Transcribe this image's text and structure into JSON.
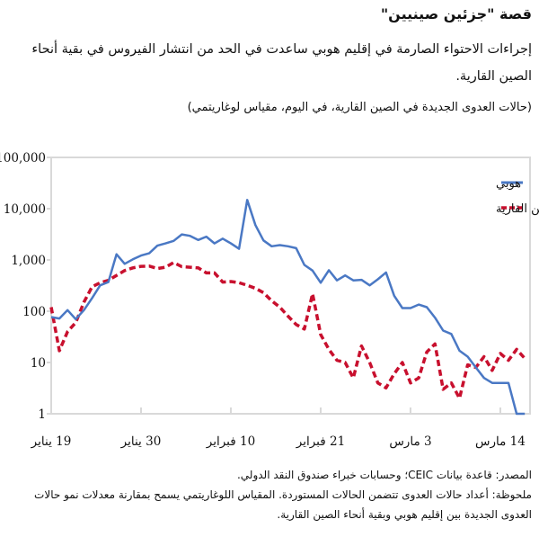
{
  "header": {
    "title": "قصة \"جزئين صينيين\"",
    "subtitle": "إجراءات الاحتواء الصارمة في إقليم هوبي ساعدت في الحد من انتشار الفيروس في بقية أنحاء الصين القارية.",
    "units_note": "(حالات العدوى الجديدة في الصين القارية، في اليوم، مقياس لوغاريتمي)"
  },
  "footer": {
    "source": "المصدر: قاعدة بيانات CEIC؛ وحسابات خبراء صندوق النقد الدولي.",
    "note": "ملحوظة: أعداد حالات العدوى تتضمن الحالات المستوردة. المقياس اللوغاريتمي يسمح بمقارنة معدلات نمو حالات العدوى الجديدة بين إقليم هوبي وبقية أنحاء الصين القارية."
  },
  "chart_data": {
    "type": "line",
    "y_scale": "log",
    "ylim": [
      1,
      100000
    ],
    "y_ticks": [
      {
        "value": 1,
        "label": "1"
      },
      {
        "value": 10,
        "label": "10"
      },
      {
        "value": 100,
        "label": "100"
      },
      {
        "value": 1000,
        "label": "1,000"
      },
      {
        "value": 10000,
        "label": "10,000"
      },
      {
        "value": 100000,
        "label": "100,000"
      }
    ],
    "x_start": "2020-01-19",
    "x_end": "2020-03-17",
    "x_ticks": [
      {
        "date": "2020-01-19",
        "label": "19 يناير"
      },
      {
        "date": "2020-01-30",
        "label": "30 يناير"
      },
      {
        "date": "2020-02-10",
        "label": "10 فبراير"
      },
      {
        "date": "2020-02-21",
        "label": "21 فبراير"
      },
      {
        "date": "2020-03-03",
        "label": "3 مارس"
      },
      {
        "date": "2020-03-14",
        "label": "14 مارس"
      }
    ],
    "grid": false,
    "legend_position": "top-right",
    "series": [
      {
        "name": "هوبي",
        "color": "#4a78c4",
        "style": "solid",
        "values": [
          77,
          72,
          105,
          70,
          105,
          180,
          320,
          370,
          1290,
          840,
          1030,
          1220,
          1350,
          1900,
          2100,
          2350,
          3150,
          2950,
          2450,
          2850,
          2100,
          2600,
          2100,
          1650,
          14800,
          4800,
          2400,
          1850,
          1950,
          1850,
          1700,
          800,
          620,
          360,
          630,
          400,
          500,
          400,
          410,
          320,
          420,
          570,
          200,
          115,
          115,
          135,
          120,
          75,
          42,
          36,
          17,
          13,
          8,
          5,
          4,
          4,
          4,
          1,
          1
        ]
      },
      {
        "name": "بقية أنحاء الصين القارية",
        "color": "#c8102e",
        "style": "dashed",
        "values": [
          120,
          17,
          40,
          60,
          150,
          300,
          360,
          400,
          500,
          620,
          700,
          750,
          760,
          680,
          720,
          890,
          740,
          720,
          700,
          560,
          560,
          370,
          380,
          360,
          320,
          280,
          230,
          160,
          120,
          80,
          55,
          45,
          220,
          35,
          18,
          11,
          10,
          5,
          21,
          10,
          4,
          3.2,
          6,
          10,
          4,
          5,
          16,
          23,
          3,
          4,
          2,
          9,
          8,
          13,
          7,
          15,
          11,
          18,
          12
        ]
      }
    ]
  }
}
